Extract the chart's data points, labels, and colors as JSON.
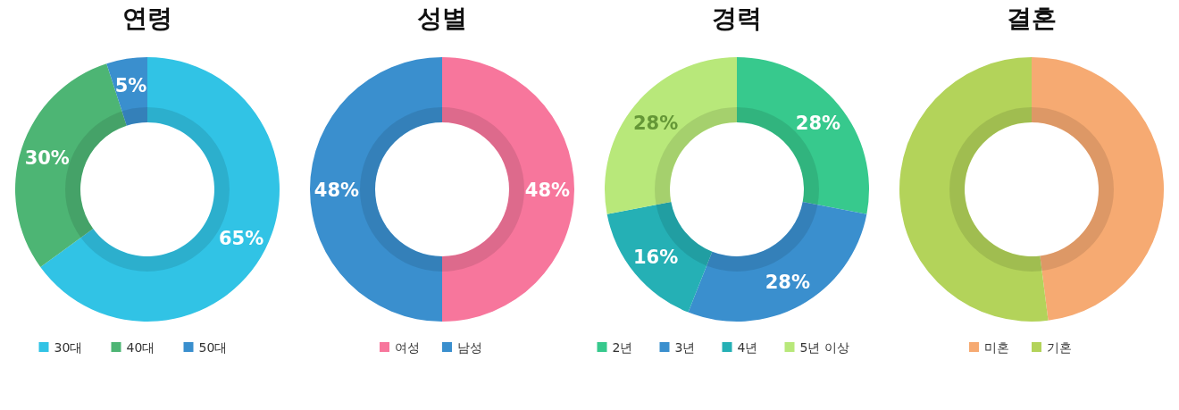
{
  "chart_data": [
    {
      "type": "donut",
      "title": "연령",
      "categories": [
        "30대",
        "40대",
        "50대"
      ],
      "values": [
        65,
        30,
        5
      ],
      "colors": [
        "#31c3e5",
        "#4db574",
        "#3a8fce"
      ],
      "value_labels": [
        "65%",
        "30%",
        "5%"
      ],
      "legend": "bottom"
    },
    {
      "type": "donut",
      "title": "성별",
      "categories": [
        "여성",
        "남성"
      ],
      "values": [
        48,
        48
      ],
      "colors": [
        "#f7769c",
        "#3a8fce"
      ],
      "value_labels": [
        "48%",
        "48%"
      ],
      "legend": "bottom"
    },
    {
      "type": "donut",
      "title": "경력",
      "categories": [
        "2년",
        "3년",
        "4년",
        "5년 이상"
      ],
      "values": [
        28,
        28,
        16,
        28
      ],
      "colors": [
        "#37c98d",
        "#3a8fce",
        "#25b0b5",
        "#b8e87a"
      ],
      "value_labels": [
        "28%",
        "28%",
        "16%",
        "28%"
      ],
      "legend": "bottom"
    },
    {
      "type": "donut",
      "title": "결혼",
      "categories": [
        "미혼",
        "기혼"
      ],
      "values": [
        48,
        52
      ],
      "colors": [
        "#f6aa72",
        "#b3d35a"
      ],
      "legend": "bottom"
    }
  ]
}
